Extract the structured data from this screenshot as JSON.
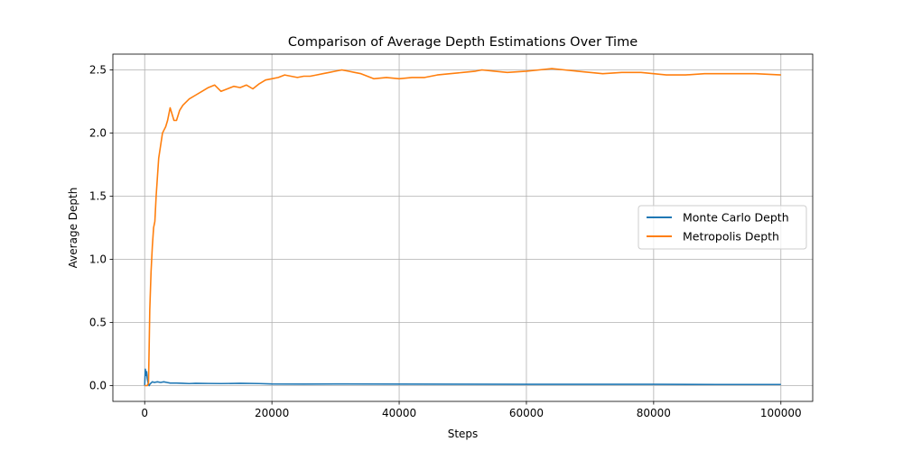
{
  "chart_data": {
    "type": "line",
    "title": "Comparison of Average Depth Estimations Over Time",
    "xlabel": "Steps",
    "ylabel": "Average Depth",
    "xlim": [
      -5000,
      105000
    ],
    "ylim": [
      -0.125,
      2.625
    ],
    "xticks": [
      0,
      20000,
      40000,
      60000,
      80000,
      100000
    ],
    "xtick_labels": [
      "0",
      "20000",
      "40000",
      "60000",
      "80000",
      "100000"
    ],
    "yticks": [
      0.0,
      0.5,
      1.0,
      1.5,
      2.0,
      2.5
    ],
    "ytick_labels": [
      "0.0",
      "0.5",
      "1.0",
      "1.5",
      "2.0",
      "2.5"
    ],
    "grid": true,
    "legend_position": "center-right",
    "series": [
      {
        "name": "Monte Carlo Depth",
        "color": "#1f77b4",
        "x": [
          0,
          100,
          200,
          300,
          400,
          500,
          600,
          700,
          800,
          1000,
          1200,
          1500,
          2000,
          2500,
          3000,
          3500,
          4000,
          5000,
          6000,
          7000,
          8000,
          10000,
          12000,
          15000,
          18000,
          20000,
          25000,
          30000,
          40000,
          50000,
          60000,
          70000,
          80000,
          90000,
          100000
        ],
        "y": [
          0.0,
          0.13,
          0.08,
          0.11,
          0.06,
          0.03,
          0.01,
          0.0,
          0.01,
          0.02,
          0.03,
          0.025,
          0.03,
          0.025,
          0.03,
          0.025,
          0.02,
          0.02,
          0.018,
          0.016,
          0.018,
          0.017,
          0.016,
          0.018,
          0.016,
          0.013,
          0.012,
          0.013,
          0.012,
          0.011,
          0.01,
          0.01,
          0.01,
          0.009,
          0.009
        ]
      },
      {
        "name": "Metropolis Depth",
        "color": "#ff7f0e",
        "x": [
          0,
          200,
          400,
          600,
          700,
          800,
          1000,
          1200,
          1400,
          1600,
          1800,
          2000,
          2200,
          2500,
          2800,
          3000,
          3300,
          3600,
          4000,
          4300,
          4600,
          5000,
          5500,
          6000,
          7000,
          8000,
          9000,
          10000,
          11000,
          12000,
          13000,
          14000,
          15000,
          16000,
          17000,
          18000,
          19000,
          20000,
          21000,
          22000,
          23000,
          24000,
          25000,
          26000,
          27000,
          28000,
          29000,
          30000,
          31000,
          32000,
          33000,
          34000,
          35000,
          36000,
          38000,
          40000,
          42000,
          44000,
          46000,
          48000,
          50000,
          52000,
          53000,
          55000,
          57000,
          60000,
          62000,
          64000,
          66000,
          68000,
          70000,
          72000,
          75000,
          78000,
          80000,
          82000,
          85000,
          88000,
          90000,
          93000,
          96000,
          100000
        ],
        "y": [
          0.0,
          0.0,
          0.0,
          0.02,
          0.3,
          0.6,
          0.9,
          1.1,
          1.25,
          1.3,
          1.5,
          1.65,
          1.8,
          1.9,
          2.0,
          2.02,
          2.05,
          2.1,
          2.2,
          2.15,
          2.1,
          2.1,
          2.18,
          2.22,
          2.27,
          2.3,
          2.33,
          2.36,
          2.38,
          2.33,
          2.35,
          2.37,
          2.36,
          2.38,
          2.35,
          2.39,
          2.42,
          2.43,
          2.44,
          2.46,
          2.45,
          2.44,
          2.45,
          2.45,
          2.46,
          2.47,
          2.48,
          2.49,
          2.5,
          2.49,
          2.48,
          2.47,
          2.45,
          2.43,
          2.44,
          2.43,
          2.44,
          2.44,
          2.46,
          2.47,
          2.48,
          2.49,
          2.5,
          2.49,
          2.48,
          2.49,
          2.5,
          2.51,
          2.5,
          2.49,
          2.48,
          2.47,
          2.48,
          2.48,
          2.47,
          2.46,
          2.46,
          2.47,
          2.47,
          2.47,
          2.47,
          2.46
        ]
      }
    ]
  }
}
